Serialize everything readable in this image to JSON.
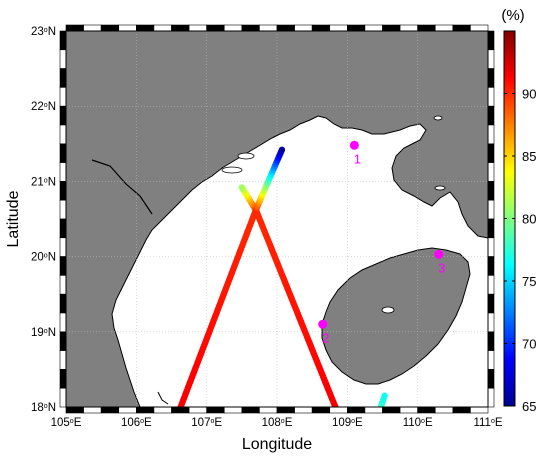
{
  "map": {
    "xlabel": "Longitude",
    "ylabel": "Latitude",
    "lon_ticks": [
      {
        "value": 105,
        "deg": "105",
        "hemi": "E"
      },
      {
        "value": 106,
        "deg": "106",
        "hemi": "E"
      },
      {
        "value": 107,
        "deg": "107",
        "hemi": "E"
      },
      {
        "value": 108,
        "deg": "108",
        "hemi": "E"
      },
      {
        "value": 109,
        "deg": "109",
        "hemi": "E"
      },
      {
        "value": 110,
        "deg": "110",
        "hemi": "E"
      },
      {
        "value": 111,
        "deg": "111",
        "hemi": "E"
      }
    ],
    "lat_ticks": [
      {
        "value": 18,
        "deg": "18",
        "hemi": "N"
      },
      {
        "value": 19,
        "deg": "19",
        "hemi": "N"
      },
      {
        "value": 20,
        "deg": "20",
        "hemi": "N"
      },
      {
        "value": 21,
        "deg": "21",
        "hemi": "N"
      },
      {
        "value": 22,
        "deg": "22",
        "hemi": "N"
      },
      {
        "value": 23,
        "deg": "23",
        "hemi": "N"
      }
    ],
    "lon_range": [
      105,
      111
    ],
    "lat_range": [
      18,
      23
    ],
    "land_color": "#808080",
    "sea_color": "#ffffff",
    "grid": true,
    "stations": [
      {
        "label": "1",
        "lon": 109.1,
        "lat": 21.48
      },
      {
        "label": "2",
        "lon": 108.65,
        "lat": 19.1
      },
      {
        "label": "3",
        "lon": 110.3,
        "lat": 20.03
      }
    ],
    "marker_color": "#ff00ff"
  },
  "colorbar": {
    "unit": "(%)",
    "min": 65,
    "max": 95,
    "ticks": [
      "65",
      "70",
      "75",
      "80",
      "85",
      "90"
    ],
    "tick_values": [
      65,
      70,
      75,
      80,
      85,
      90
    ],
    "colormap": "jet"
  },
  "chart_data": {
    "type": "scatter",
    "title": "",
    "xlabel": "Longitude",
    "ylabel": "Latitude",
    "xlim": [
      105,
      111
    ],
    "ylim": [
      18,
      23
    ],
    "tracks": [
      {
        "start": [
          106.63,
          18.0
        ],
        "end": [
          107.7,
          20.62
        ],
        "value_start": 91.5,
        "value_end": 90.0
      },
      {
        "start": [
          108.83,
          18.0
        ],
        "end": [
          107.7,
          20.62
        ],
        "value_start": 91.5,
        "value_end": 90.0
      },
      {
        "start": [
          107.7,
          20.62
        ],
        "end": [
          107.5,
          20.92
        ],
        "value_start": 90.0,
        "value_end": 81.0
      },
      {
        "start": [
          107.7,
          20.62
        ],
        "end": [
          108.07,
          21.42
        ],
        "value_start": 90.0,
        "value_end": 66.0
      },
      {
        "start": [
          109.47,
          17.98
        ],
        "end": [
          109.53,
          18.15
        ],
        "value_start": 78.0,
        "value_end": 76.5
      }
    ]
  }
}
